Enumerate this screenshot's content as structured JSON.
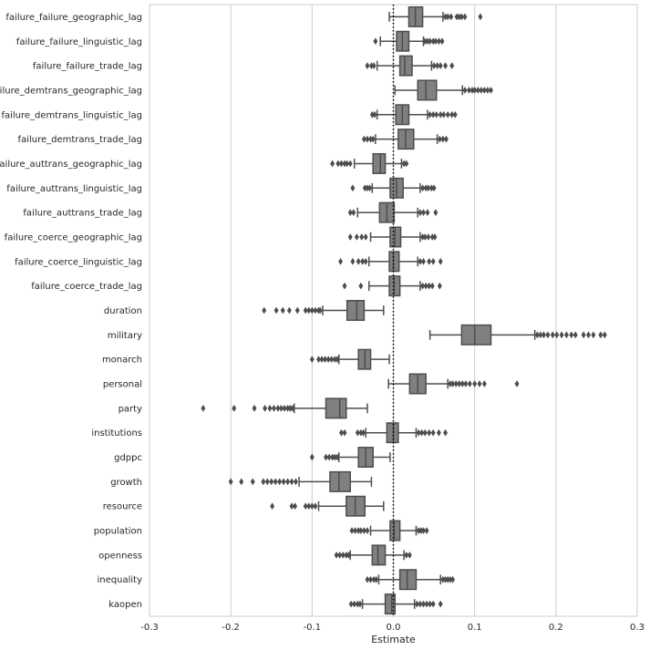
{
  "chart_data": {
    "type": "boxplot",
    "orientation": "horizontal",
    "title": "",
    "xlabel": "Estimate",
    "ylabel": "",
    "xlim": [
      -0.3,
      0.3
    ],
    "xticks": [
      -0.3,
      -0.2,
      -0.1,
      0.0,
      0.1,
      0.2,
      0.3
    ],
    "xtick_labels": [
      "-0.3",
      "-0.2",
      "-0.1",
      "0.0",
      "0.1",
      "0.2",
      "0.3"
    ],
    "reference_line": 0.0,
    "grid": "vertical",
    "colors": {
      "box": "#808080",
      "line": "#4d4d4d",
      "grid": "#cccccc",
      "reference": "#000000"
    },
    "categories": [
      "failure_failure_geographic_lag",
      "failure_failure_linguistic_lag",
      "failure_failure_trade_lag",
      "failure_demtrans_geographic_lag",
      "failure_demtrans_linguistic_lag",
      "failure_demtrans_trade_lag",
      "failure_auttrans_geographic_lag",
      "failure_auttrans_linguistic_lag",
      "failure_auttrans_trade_lag",
      "failure_coerce_geographic_lag",
      "failure_coerce_linguistic_lag",
      "failure_coerce_trade_lag",
      "duration",
      "military",
      "monarch",
      "personal",
      "party",
      "institutions",
      "gdppc",
      "growth",
      "resource",
      "population",
      "openness",
      "inequality",
      "kaopen"
    ],
    "boxes": [
      {
        "name": "failure_failure_geographic_lag",
        "whislo": -0.005,
        "q1": 0.019,
        "med": 0.027,
        "q3": 0.036,
        "whishi": 0.061,
        "fliers": [
          0.064,
          0.067,
          0.071,
          0.078,
          0.081,
          0.084,
          0.088,
          0.107
        ]
      },
      {
        "name": "failure_failure_linguistic_lag",
        "whislo": -0.016,
        "q1": 0.004,
        "med": 0.011,
        "q3": 0.019,
        "whishi": 0.037,
        "fliers": [
          -0.022,
          0.039,
          0.042,
          0.045,
          0.049,
          0.052,
          0.056,
          0.06
        ]
      },
      {
        "name": "failure_failure_trade_lag",
        "whislo": -0.02,
        "q1": 0.008,
        "med": 0.014,
        "q3": 0.023,
        "whishi": 0.047,
        "fliers": [
          -0.032,
          -0.027,
          -0.024,
          0.05,
          0.054,
          0.058,
          0.064,
          0.072
        ]
      },
      {
        "name": "failure_demtrans_geographic_lag",
        "whislo": 0.002,
        "q1": 0.03,
        "med": 0.04,
        "q3": 0.053,
        "whishi": 0.085,
        "fliers": [
          0.088,
          0.093,
          0.097,
          0.1,
          0.104,
          0.108,
          0.112,
          0.116,
          0.12
        ]
      },
      {
        "name": "failure_demtrans_linguistic_lag",
        "whislo": -0.02,
        "q1": 0.003,
        "med": 0.011,
        "q3": 0.019,
        "whishi": 0.042,
        "fliers": [
          -0.026,
          -0.023,
          0.045,
          0.049,
          0.053,
          0.058,
          0.062,
          0.067,
          0.072,
          0.076
        ]
      },
      {
        "name": "failure_demtrans_trade_lag",
        "whislo": -0.022,
        "q1": 0.006,
        "med": 0.015,
        "q3": 0.025,
        "whishi": 0.054,
        "fliers": [
          -0.036,
          -0.032,
          -0.028,
          -0.025,
          0.057,
          0.061,
          0.065
        ]
      },
      {
        "name": "failure_auttrans_geographic_lag",
        "whislo": -0.048,
        "q1": -0.025,
        "med": -0.016,
        "q3": -0.01,
        "whishi": 0.01,
        "fliers": [
          -0.075,
          -0.068,
          -0.064,
          -0.06,
          -0.057,
          -0.053,
          0.013,
          0.016
        ]
      },
      {
        "name": "failure_auttrans_linguistic_lag",
        "whislo": -0.026,
        "q1": -0.004,
        "med": 0.004,
        "q3": 0.012,
        "whishi": 0.033,
        "fliers": [
          -0.05,
          -0.035,
          -0.032,
          -0.029,
          0.036,
          0.04,
          0.043,
          0.047,
          0.05
        ]
      },
      {
        "name": "failure_auttrans_trade_lag",
        "whislo": -0.044,
        "q1": -0.017,
        "med": -0.008,
        "q3": 0.001,
        "whishi": 0.03,
        "fliers": [
          -0.053,
          -0.049,
          0.033,
          0.037,
          0.042,
          0.052
        ]
      },
      {
        "name": "failure_coerce_geographic_lag",
        "whislo": -0.028,
        "q1": -0.004,
        "med": 0.002,
        "q3": 0.009,
        "whishi": 0.033,
        "fliers": [
          -0.053,
          -0.045,
          -0.039,
          -0.034,
          0.036,
          0.039,
          0.043,
          0.048,
          0.051
        ]
      },
      {
        "name": "failure_coerce_linguistic_lag",
        "whislo": -0.03,
        "q1": -0.005,
        "med": 0.0,
        "q3": 0.007,
        "whishi": 0.03,
        "fliers": [
          -0.065,
          -0.05,
          -0.043,
          -0.038,
          -0.034,
          0.033,
          0.037,
          0.044,
          0.049,
          0.058
        ]
      },
      {
        "name": "failure_coerce_trade_lag",
        "whislo": -0.03,
        "q1": -0.005,
        "med": 0.001,
        "q3": 0.008,
        "whishi": 0.033,
        "fliers": [
          -0.06,
          -0.04,
          0.036,
          0.04,
          0.044,
          0.048,
          0.057
        ]
      },
      {
        "name": "duration",
        "whislo": -0.087,
        "q1": -0.057,
        "med": -0.045,
        "q3": -0.036,
        "whishi": -0.012,
        "fliers": [
          -0.159,
          -0.144,
          -0.136,
          -0.128,
          -0.118,
          -0.108,
          -0.104,
          -0.1,
          -0.096,
          -0.092,
          -0.09
        ]
      },
      {
        "name": "military",
        "whislo": 0.045,
        "q1": 0.084,
        "med": 0.1,
        "q3": 0.12,
        "whishi": 0.174,
        "fliers": [
          0.177,
          0.181,
          0.185,
          0.19,
          0.196,
          0.201,
          0.207,
          0.213,
          0.219,
          0.224,
          0.234,
          0.24,
          0.246,
          0.255,
          0.26
        ]
      },
      {
        "name": "monarch",
        "whislo": -0.067,
        "q1": -0.043,
        "med": -0.035,
        "q3": -0.028,
        "whishi": -0.005,
        "fliers": [
          -0.1,
          -0.092,
          -0.088,
          -0.084,
          -0.08,
          -0.076,
          -0.072,
          -0.069
        ]
      },
      {
        "name": "personal",
        "whislo": -0.006,
        "q1": 0.02,
        "med": 0.03,
        "q3": 0.04,
        "whishi": 0.067,
        "fliers": [
          0.07,
          0.073,
          0.077,
          0.081,
          0.085,
          0.089,
          0.094,
          0.1,
          0.106,
          0.112,
          0.152
        ]
      },
      {
        "name": "party",
        "whislo": -0.122,
        "q1": -0.083,
        "med": -0.066,
        "q3": -0.058,
        "whishi": -0.032,
        "fliers": [
          -0.234,
          -0.196,
          -0.171,
          -0.158,
          -0.152,
          -0.147,
          -0.142,
          -0.138,
          -0.134,
          -0.13,
          -0.127,
          -0.124
        ]
      },
      {
        "name": "institutions",
        "whislo": -0.034,
        "q1": -0.008,
        "med": 0.0,
        "q3": 0.006,
        "whishi": 0.028,
        "fliers": [
          -0.064,
          -0.06,
          -0.044,
          -0.04,
          -0.037,
          0.031,
          0.035,
          0.039,
          0.044,
          0.049,
          0.056,
          0.064
        ]
      },
      {
        "name": "gdppc",
        "whislo": -0.067,
        "q1": -0.043,
        "med": -0.034,
        "q3": -0.025,
        "whishi": -0.004,
        "fliers": [
          -0.1,
          -0.083,
          -0.079,
          -0.075,
          -0.072,
          -0.069
        ]
      },
      {
        "name": "growth",
        "whislo": -0.116,
        "q1": -0.078,
        "med": -0.067,
        "q3": -0.053,
        "whishi": -0.027,
        "fliers": [
          -0.2,
          -0.187,
          -0.173,
          -0.16,
          -0.155,
          -0.15,
          -0.145,
          -0.14,
          -0.135,
          -0.13,
          -0.125,
          -0.12
        ]
      },
      {
        "name": "resource",
        "whislo": -0.092,
        "q1": -0.058,
        "med": -0.047,
        "q3": -0.035,
        "whishi": -0.012,
        "fliers": [
          -0.149,
          -0.125,
          -0.121,
          -0.108,
          -0.104,
          -0.1,
          -0.096
        ]
      },
      {
        "name": "population",
        "whislo": -0.028,
        "q1": -0.004,
        "med": 0.001,
        "q3": 0.008,
        "whishi": 0.028,
        "fliers": [
          -0.051,
          -0.047,
          -0.043,
          -0.04,
          -0.036,
          -0.032,
          0.031,
          0.034,
          0.037,
          0.041
        ]
      },
      {
        "name": "openness",
        "whislo": -0.053,
        "q1": -0.026,
        "med": -0.019,
        "q3": -0.01,
        "whishi": 0.013,
        "fliers": [
          -0.07,
          -0.066,
          -0.062,
          -0.058,
          -0.055,
          0.016,
          0.02
        ]
      },
      {
        "name": "inequality",
        "whislo": -0.018,
        "q1": 0.008,
        "med": 0.017,
        "q3": 0.028,
        "whishi": 0.058,
        "fliers": [
          -0.032,
          -0.028,
          -0.024,
          -0.021,
          0.061,
          0.064,
          0.067,
          0.07,
          0.073
        ]
      },
      {
        "name": "kaopen",
        "whislo": -0.038,
        "q1": -0.01,
        "med": -0.002,
        "q3": 0.002,
        "whishi": 0.026,
        "fliers": [
          -0.052,
          -0.048,
          -0.044,
          -0.041,
          0.029,
          0.033,
          0.037,
          0.041,
          0.045,
          0.049,
          0.058
        ]
      }
    ]
  }
}
